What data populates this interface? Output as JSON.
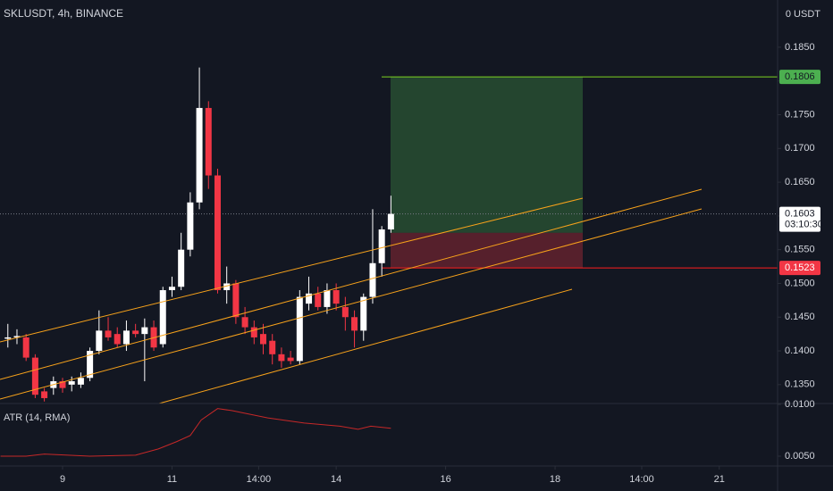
{
  "header": {
    "symbol": "SKLUSDT, 4h, BINANCE",
    "currency": "0 USDT"
  },
  "chart_data": [
    {
      "type": "candlestick",
      "x": [
        -6,
        -5,
        -4,
        -3,
        -2,
        -1,
        0,
        1,
        2,
        3,
        4,
        5,
        6,
        7,
        8,
        9,
        10,
        11,
        12,
        13,
        14,
        15,
        16,
        17,
        18,
        19,
        20,
        21,
        22,
        23,
        24,
        25,
        26,
        27,
        28,
        29,
        30,
        31,
        32,
        33,
        34,
        35,
        36
      ],
      "open": [
        0.1418,
        0.142,
        0.142,
        0.139,
        0.134,
        0.1345,
        0.1355,
        0.135,
        0.135,
        0.136,
        0.14,
        0.143,
        0.1425,
        0.141,
        0.143,
        0.1425,
        0.1435,
        0.141,
        0.149,
        0.1495,
        0.155,
        0.162,
        0.176,
        0.166,
        0.149,
        0.15,
        0.145,
        0.1435,
        0.1425,
        0.1415,
        0.1395,
        0.139,
        0.1385,
        0.147,
        0.1485,
        0.1465,
        0.149,
        0.1465,
        0.145,
        0.143,
        0.148,
        0.153,
        0.158
      ],
      "high": [
        0.144,
        0.1432,
        0.1425,
        0.1395,
        0.1345,
        0.1362,
        0.136,
        0.1362,
        0.1368,
        0.1405,
        0.146,
        0.145,
        0.1435,
        0.1445,
        0.144,
        0.1448,
        0.1445,
        0.1495,
        0.151,
        0.1575,
        0.1635,
        0.182,
        0.177,
        0.167,
        0.1525,
        0.1505,
        0.1465,
        0.1445,
        0.144,
        0.1425,
        0.1405,
        0.14,
        0.149,
        0.151,
        0.1495,
        0.15,
        0.15,
        0.148,
        0.146,
        0.1485,
        0.161,
        0.1585,
        0.163
      ],
      "low": [
        0.1405,
        0.141,
        0.1385,
        0.133,
        0.1325,
        0.1335,
        0.1338,
        0.134,
        0.1345,
        0.1355,
        0.1395,
        0.1415,
        0.1405,
        0.14,
        0.142,
        0.1355,
        0.14,
        0.1405,
        0.148,
        0.149,
        0.154,
        0.161,
        0.164,
        0.1485,
        0.147,
        0.144,
        0.1425,
        0.141,
        0.1395,
        0.138,
        0.1375,
        0.138,
        0.138,
        0.146,
        0.146,
        0.1455,
        0.146,
        0.143,
        0.1405,
        0.1415,
        0.147,
        0.151,
        0.1575
      ],
      "close": [
        0.142,
        0.1422,
        0.139,
        0.1335,
        0.133,
        0.1355,
        0.1345,
        0.1355,
        0.136,
        0.14,
        0.143,
        0.142,
        0.141,
        0.143,
        0.1425,
        0.1435,
        0.1405,
        0.149,
        0.1495,
        0.155,
        0.162,
        0.176,
        0.166,
        0.149,
        0.15,
        0.145,
        0.1435,
        0.142,
        0.141,
        0.1395,
        0.1385,
        0.1385,
        0.148,
        0.1485,
        0.1465,
        0.149,
        0.147,
        0.145,
        0.143,
        0.148,
        0.153,
        0.158,
        0.1603
      ],
      "up_color": "#ffffff",
      "down_color": "#f23645",
      "xlim": [
        -6.86,
        78.2
      ],
      "xticks": [
        {
          "value": 0,
          "label": "9"
        },
        {
          "value": 12,
          "label": "11"
        },
        {
          "value": 21.5,
          "label": "14:00"
        },
        {
          "value": 30,
          "label": "14"
        },
        {
          "value": 42,
          "label": "16"
        },
        {
          "value": 54,
          "label": "18"
        },
        {
          "value": 63.5,
          "label": "14:00"
        },
        {
          "value": 72,
          "label": "21"
        }
      ],
      "ylim": [
        0.1322,
        0.192
      ],
      "yticks": [
        {
          "value": 0.135,
          "label": "0.1350"
        },
        {
          "value": 0.14,
          "label": "0.1400"
        },
        {
          "value": 0.145,
          "label": "0.1450"
        },
        {
          "value": 0.15,
          "label": "0.1500"
        },
        {
          "value": 0.155,
          "label": "0.1550"
        },
        {
          "value": 0.16,
          "label": "0.1600"
        },
        {
          "value": 0.165,
          "label": "0.1650"
        },
        {
          "value": 0.17,
          "label": "0.1700"
        },
        {
          "value": 0.175,
          "label": "0.1750"
        },
        {
          "value": 0.18,
          "label": "0.1800"
        },
        {
          "value": 0.185,
          "label": "0.1850"
        }
      ],
      "price_labels": [
        {
          "value": 0.1806,
          "label": "0.1806",
          "color": "#4caf50"
        },
        {
          "value": 0.1603,
          "label": "0.1603",
          "sub": "03:10:30",
          "color": "#ffffff"
        },
        {
          "value": 0.1523,
          "label": "0.1523",
          "color": "#f23645"
        }
      ],
      "position": {
        "entry": 0.1575
      }
    },
    {
      "type": "line",
      "name": "ATR (14, RMA)",
      "color": "#c62828",
      "x": [
        -6.8,
        -4,
        -2,
        3,
        8,
        10.5,
        12.5,
        14,
        15.2,
        17,
        18.6,
        22.5,
        26.5,
        30.4,
        32.4,
        33.8,
        36
      ],
      "values": [
        0.005,
        0.005,
        0.0052,
        0.005,
        0.0051,
        0.0057,
        0.0064,
        0.007,
        0.0085,
        0.0096,
        0.0094,
        0.0087,
        0.0082,
        0.0079,
        0.0076,
        0.0079,
        0.0077
      ],
      "ylim": [
        0.00405,
        0.01009
      ],
      "yticks": [
        {
          "value": 0.005,
          "label": "0.0050"
        },
        {
          "value": 0.01,
          "label": "0.0100"
        }
      ]
    }
  ]
}
